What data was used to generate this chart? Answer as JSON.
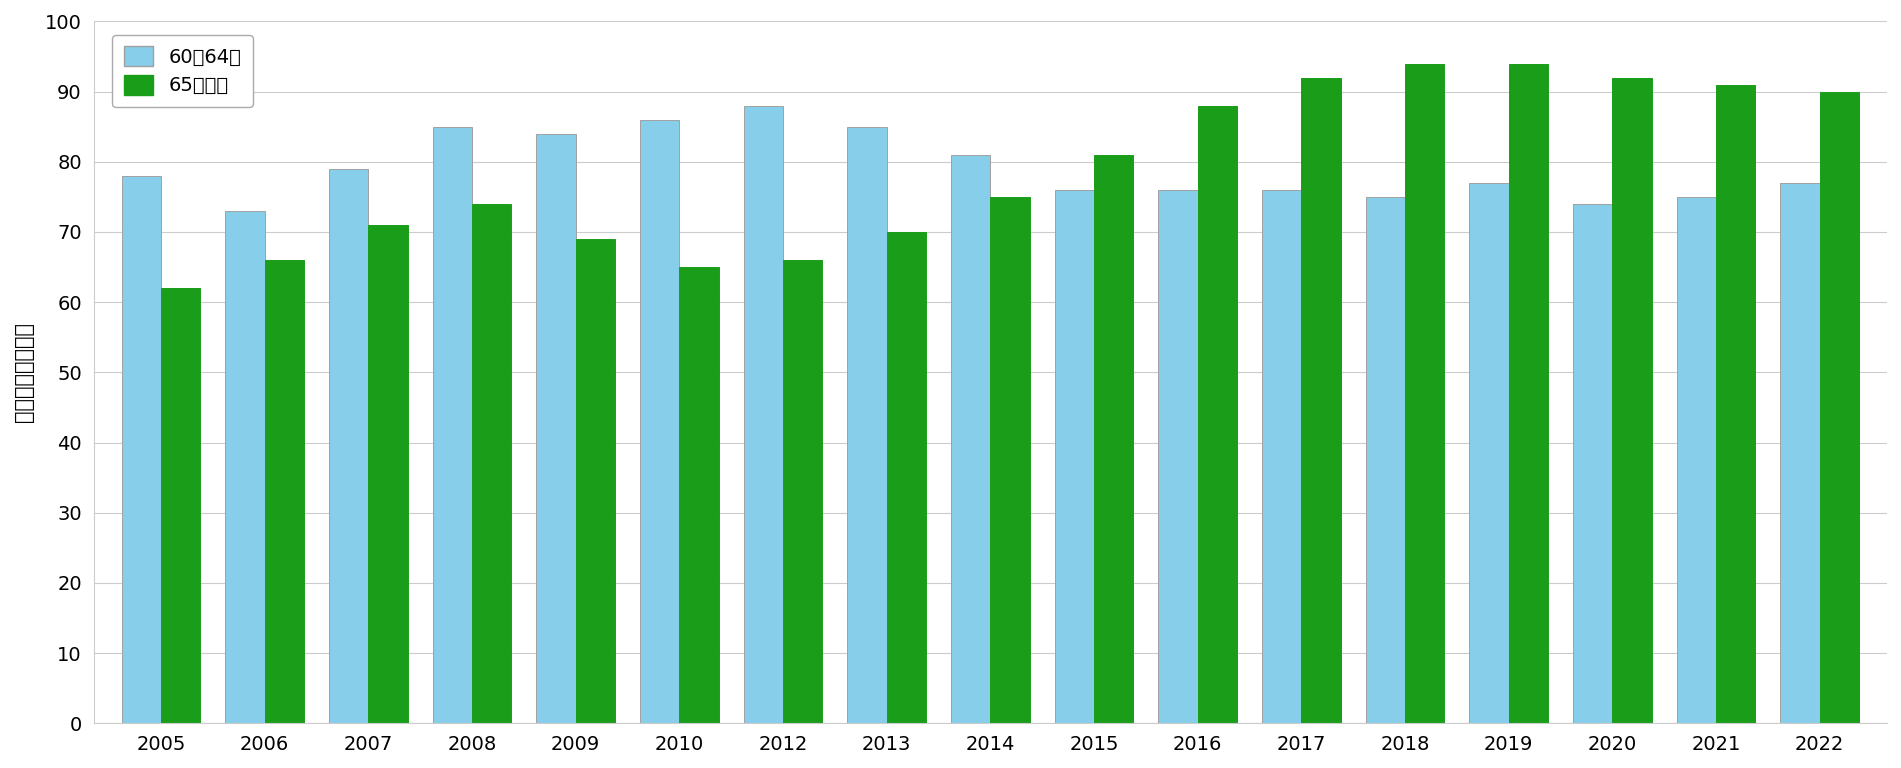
{
  "years": [
    2005,
    2006,
    2007,
    2008,
    2009,
    2010,
    2012,
    2013,
    2014,
    2015,
    2016,
    2017,
    2018,
    2019,
    2020,
    2021,
    2022
  ],
  "blue_values": [
    78,
    73,
    79,
    85,
    84,
    86,
    88,
    85,
    81,
    76,
    76,
    76,
    75,
    77,
    74,
    75,
    77
  ],
  "green_values": [
    62,
    66,
    71,
    74,
    69,
    65,
    66,
    70,
    75,
    81,
    88,
    92,
    94,
    94,
    92,
    91,
    90
  ],
  "blue_color": "#87CEEB",
  "green_color": "#1a9e1a",
  "blue_edge": "#a0a0a0",
  "green_edge": "#1a9e1a",
  "ylabel": "就業者数（万人）",
  "ylim": [
    0,
    100
  ],
  "yticks": [
    0,
    10,
    20,
    30,
    40,
    50,
    60,
    70,
    80,
    90,
    100
  ],
  "legend_blue": "60～64歳",
  "legend_green": "65歳以上",
  "plot_bg_color": "#ffffff",
  "fig_bg_color": "#ffffff",
  "bar_width": 0.38,
  "grid_color": "#cccccc",
  "tick_fontsize": 14,
  "axis_fontsize": 15,
  "legend_fontsize": 14
}
